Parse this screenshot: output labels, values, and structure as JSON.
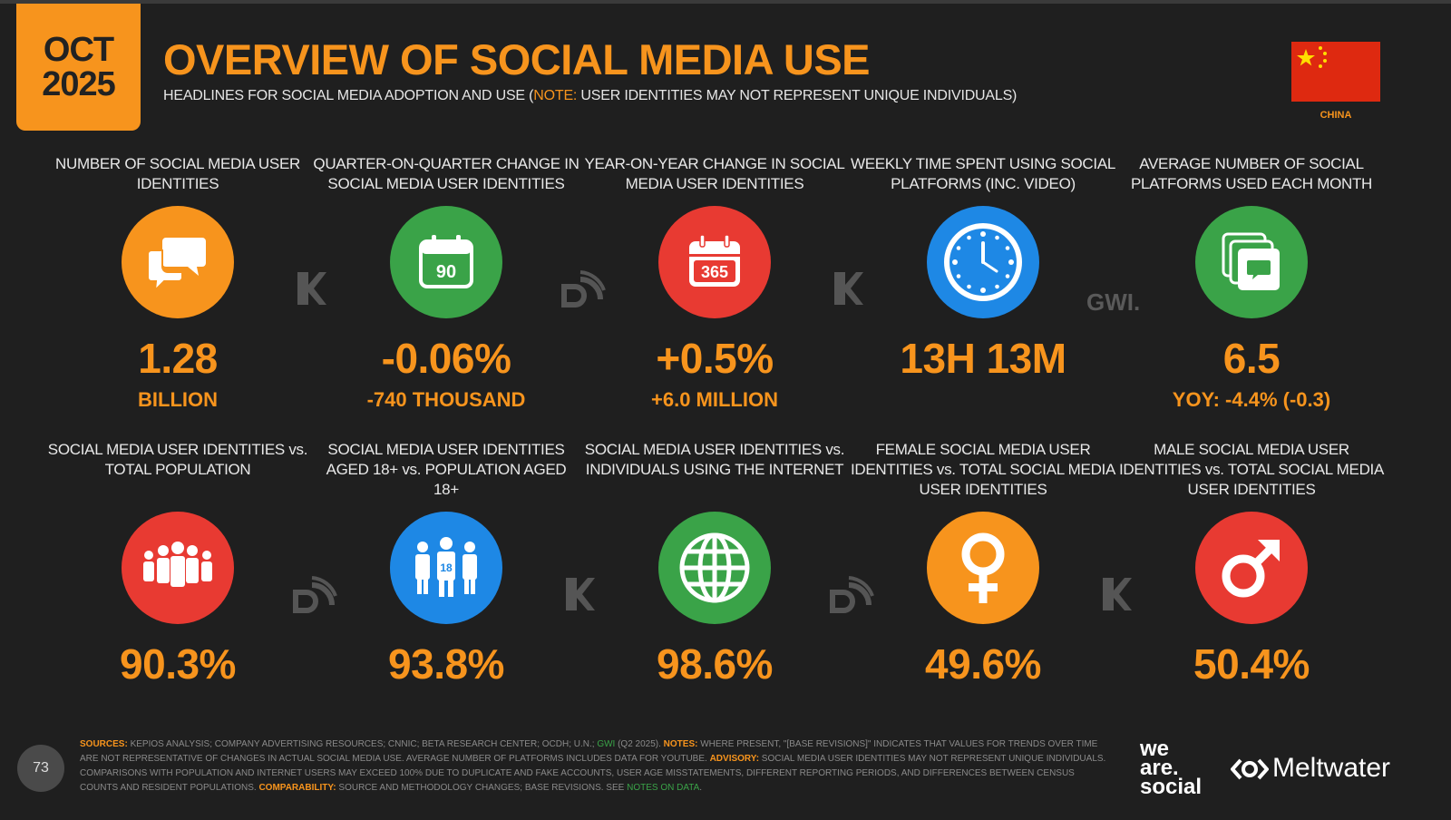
{
  "header": {
    "month": "OCT",
    "year": "2025",
    "title": "OVERVIEW OF SOCIAL MEDIA USE",
    "subtitle_pre": "HEADLINES FOR SOCIAL MEDIA ADOPTION AND USE (",
    "subtitle_note": "NOTE:",
    "subtitle_post": " USER IDENTITIES MAY NOT REPRESENT UNIQUE INDIVIDUALS)",
    "country": "CHINA"
  },
  "stats_top": [
    {
      "label": "NUMBER OF SOCIAL MEDIA USER IDENTITIES",
      "value": "1.28",
      "sub": "BILLION",
      "icon": "speech-bubbles-icon",
      "color": "#f7941d"
    },
    {
      "label": "QUARTER-ON-QUARTER CHANGE IN SOCIAL MEDIA USER IDENTITIES",
      "value": "-0.06%",
      "sub": "-740 THOUSAND",
      "icon": "calendar-90-icon",
      "icon_text": "90",
      "color": "#3aa348"
    },
    {
      "label": "YEAR-ON-YEAR CHANGE IN SOCIAL MEDIA USER IDENTITIES",
      "value": "+0.5%",
      "sub": "+6.0 MILLION",
      "icon": "calendar-365-icon",
      "icon_text": "365",
      "color": "#e83a32"
    },
    {
      "label": "WEEKLY TIME SPENT USING SOCIAL PLATFORMS (INC. VIDEO)",
      "value": "13H 13M",
      "sub": "",
      "icon": "clock-icon",
      "color": "#1e88e5"
    },
    {
      "label": "AVERAGE NUMBER OF SOCIAL PLATFORMS USED EACH MONTH",
      "value": "6.5",
      "sub": "YOY: -4.4% (-0.3)",
      "icon": "stacked-chat-icon",
      "color": "#3aa348"
    }
  ],
  "stats_bottom": [
    {
      "label": "SOCIAL MEDIA USER IDENTITIES vs. TOTAL POPULATION",
      "value": "90.3%",
      "icon": "people-group-icon",
      "color": "#e83a32"
    },
    {
      "label": "SOCIAL MEDIA USER IDENTITIES AGED 18+ vs. POPULATION AGED 18+",
      "value": "93.8%",
      "icon": "adults-18-icon",
      "icon_text": "18",
      "color": "#1e88e5"
    },
    {
      "label": "SOCIAL MEDIA USER IDENTITIES vs. INDIVIDUALS USING THE INTERNET",
      "value": "98.6%",
      "icon": "globe-icon",
      "color": "#3aa348"
    },
    {
      "label": "FEMALE SOCIAL MEDIA USER IDENTITIES vs. TOTAL SOCIAL MEDIA USER IDENTITIES",
      "value": "49.6%",
      "icon": "female-symbol-icon",
      "color": "#f7941d"
    },
    {
      "label": "MALE SOCIAL MEDIA USER IDENTITIES vs. TOTAL SOCIAL MEDIA USER IDENTITIES",
      "value": "50.4%",
      "icon": "male-symbol-icon",
      "color": "#e83a32"
    }
  ],
  "watermarks": {
    "kepios": "KEPIOS",
    "gwi": "GWI."
  },
  "footer": {
    "page_number": "73",
    "sources_label": "SOURCES:",
    "sources_text": " KEPIOS ANALYSIS; COMPANY ADVERTISING RESOURCES; CNNIC; BETA RESEARCH CENTER; OCDH; U.N.; ",
    "gwi_text": "GWI",
    "sources_text2": " (Q2 2025). ",
    "notes_label": "NOTES:",
    "notes_text": " WHERE PRESENT, \"[BASE REVISIONS]\" INDICATES THAT VALUES FOR TRENDS OVER TIME ARE NOT REPRESENTATIVE OF CHANGES IN ACTUAL SOCIAL MEDIA USE. AVERAGE NUMBER OF PLATFORMS INCLUDES DATA FOR YOUTUBE. ",
    "advisory_label": "ADVISORY:",
    "advisory_text": " SOCIAL MEDIA USER IDENTITIES MAY NOT REPRESENT UNIQUE INDIVIDUALS. COMPARISONS WITH POPULATION AND INTERNET USERS MAY EXCEED 100% DUE TO DUPLICATE AND FAKE ACCOUNTS, USER AGE MISSTATEMENTS, DIFFERENT REPORTING PERIODS, AND DIFFERENCES BETWEEN CENSUS COUNTS AND RESIDENT POPULATIONS. ",
    "comparability_label": "COMPARABILITY:",
    "comparability_text": " SOURCE AND METHODOLOGY CHANGES; BASE REVISIONS. SEE ",
    "notes_link": "NOTES ON DATA",
    "end": ".",
    "brand_we": "we",
    "brand_are": "are.",
    "brand_social": "social",
    "brand_meltwater": "Meltwater"
  }
}
